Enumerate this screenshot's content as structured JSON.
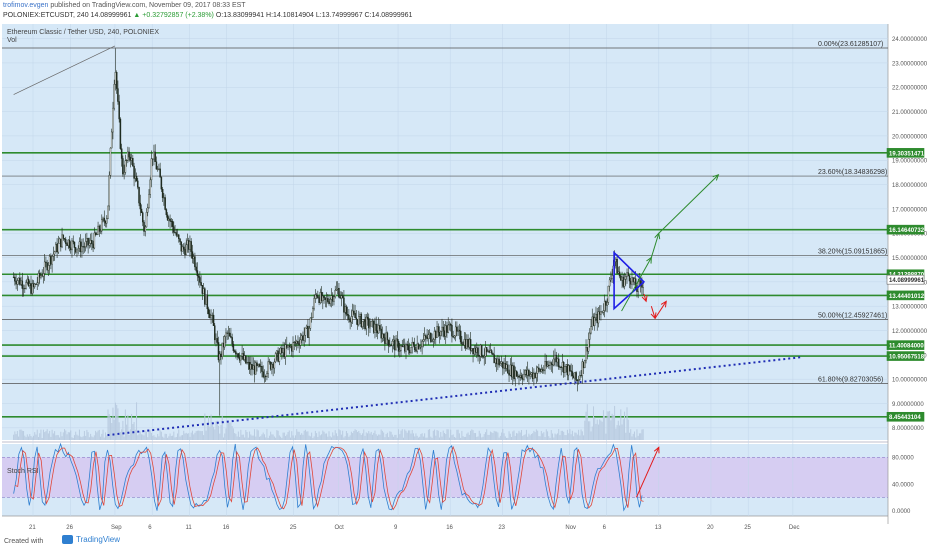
{
  "header": {
    "author": "trofimov.evgen",
    "published": "published on TradingView.com, November 09, 2017 08:33 EST",
    "symbol_line": "POLONIEX:ETCUSDT, 240",
    "last": "14.08999961",
    "change": "▲ +0.32792857 (+2.38%)",
    "ohlc": "O:13.83099941 H:14.10814904 L:13.74999967 C:14.08999961"
  },
  "chart": {
    "title": "Ethereum Classic / Tether USD, 240, POLONIEX",
    "volume_label": "Vol",
    "stoch_label": "Stoch RSI"
  },
  "footer": {
    "created_with": "Created with",
    "brand": "TradingView"
  },
  "colors": {
    "background": "#d6e8f7",
    "stoch_background": "#d6cdf2",
    "candle": "#1e2a1e",
    "green_level": "#2e8b2e",
    "fib_level": "#505050",
    "trendline": "#1f2db4",
    "triangle": "#1e1ee6",
    "up_arrow": "#2e8b2e",
    "down_arrow": "#e21b1b",
    "stoch_k": "#2f7fd0",
    "stoch_d": "#e0473a"
  },
  "chart_data": {
    "type": "candlestick",
    "title": "Ethereum Classic / Tether USD, 240, POLONIEX",
    "ylim": [
      7.5,
      24.6
    ],
    "y_ticks": [
      8.0,
      9.0,
      10.0,
      11.0,
      12.0,
      13.0,
      14.0,
      15.0,
      16.0,
      17.0,
      18.0,
      19.0,
      20.0,
      21.0,
      22.0,
      23.0,
      24.0
    ],
    "x_ticks": [
      {
        "label": "21",
        "day": 0
      },
      {
        "label": "26",
        "day": 5
      },
      {
        "label": "Sep",
        "day": 11
      },
      {
        "label": "6",
        "day": 16
      },
      {
        "label": "11",
        "day": 21
      },
      {
        "label": "16",
        "day": 26
      },
      {
        "label": "25",
        "day": 35
      },
      {
        "label": "Oct",
        "day": 41
      },
      {
        "label": "9",
        "day": 49
      },
      {
        "label": "16",
        "day": 56
      },
      {
        "label": "23",
        "day": 63
      },
      {
        "label": "Nov",
        "day": 72
      },
      {
        "label": "6",
        "day": 77
      },
      {
        "label": "13",
        "day": 84
      },
      {
        "label": "20",
        "day": 91
      },
      {
        "label": "25",
        "day": 96
      },
      {
        "label": "Dec",
        "day": 102
      }
    ],
    "price_path": [
      [
        -2.6,
        14.2
      ],
      [
        0,
        13.7
      ],
      [
        2,
        14.8
      ],
      [
        4,
        15.8
      ],
      [
        6,
        15.4
      ],
      [
        8,
        15.6
      ],
      [
        10,
        16.8
      ],
      [
        11,
        23.0
      ],
      [
        12,
        18.5
      ],
      [
        13,
        19.3
      ],
      [
        14,
        17.8
      ],
      [
        15,
        16.0
      ],
      [
        16,
        19.3
      ],
      [
        17,
        18.3
      ],
      [
        18,
        16.8
      ],
      [
        19,
        16.1
      ],
      [
        20,
        15.3
      ],
      [
        21,
        15.5
      ],
      [
        22,
        14.6
      ],
      [
        23,
        13.4
      ],
      [
        24,
        12.5
      ],
      [
        25,
        10.8
      ],
      [
        26,
        11.9
      ],
      [
        27,
        11.3
      ],
      [
        29,
        10.5
      ],
      [
        31,
        10.3
      ],
      [
        33,
        11.0
      ],
      [
        35,
        11.4
      ],
      [
        37,
        12.0
      ],
      [
        38,
        13.6
      ],
      [
        39,
        13.1
      ],
      [
        41,
        13.7
      ],
      [
        42,
        12.7
      ],
      [
        44,
        12.4
      ],
      [
        46,
        12.1
      ],
      [
        48,
        11.5
      ],
      [
        50,
        11.2
      ],
      [
        52,
        11.5
      ],
      [
        54,
        11.9
      ],
      [
        56,
        12.1
      ],
      [
        57,
        11.8
      ],
      [
        59,
        11.3
      ],
      [
        61,
        11.0
      ],
      [
        63,
        10.6
      ],
      [
        65,
        10.2
      ],
      [
        67,
        10.2
      ],
      [
        69,
        10.5
      ],
      [
        70,
        10.9
      ],
      [
        72,
        10.3
      ],
      [
        73,
        9.9
      ],
      [
        74,
        10.8
      ],
      [
        75,
        12.3
      ],
      [
        76,
        12.6
      ],
      [
        77,
        13.3
      ],
      [
        78,
        14.9
      ],
      [
        79,
        14.0
      ],
      [
        80,
        14.3
      ],
      [
        81,
        13.7
      ],
      [
        82,
        14.08
      ]
    ],
    "wicks": [
      {
        "day": 11,
        "high": 23.6
      },
      {
        "day": 25,
        "low": 8.5
      },
      {
        "day": 73,
        "low": 9.5
      },
      {
        "day": 78,
        "high": 15.3
      }
    ],
    "horizontal_levels": [
      {
        "label": "19.30351471",
        "value": 19.30351471,
        "kind": "green"
      },
      {
        "label": "16.14640732",
        "value": 16.14640732,
        "kind": "green"
      },
      {
        "label": "14.31298870",
        "value": 14.3129887,
        "kind": "green"
      },
      {
        "label": "13.44401012",
        "value": 13.44401012,
        "kind": "green"
      },
      {
        "label": "11.40084000",
        "value": 11.40084,
        "kind": "green"
      },
      {
        "label": "10.95067518",
        "value": 10.95067518,
        "kind": "green"
      },
      {
        "label": "8.45443104",
        "value": 8.45443104,
        "kind": "green"
      }
    ],
    "fib_levels": [
      {
        "label": "0.00%(23.61285107)",
        "value": 23.61285107
      },
      {
        "label": "23.60%(18.34836298)",
        "value": 18.34836298
      },
      {
        "label": "38.20%(15.09151865)",
        "value": 15.09151865
      },
      {
        "label": "50.00%(12.45927461)",
        "value": 12.45927461
      },
      {
        "label": "61.80%(9.82703056)",
        "value": 9.82703056
      }
    ],
    "last_price_label": "14.08999961",
    "last_price": 14.08999961,
    "trendline": {
      "from": [
        10,
        7.7
      ],
      "to": [
        103,
        10.9
      ]
    },
    "fan_line": {
      "from": [
        -2.6,
        21.7
      ],
      "to": [
        11,
        23.7
      ]
    },
    "triangle": [
      [
        78,
        15.2
      ],
      [
        78,
        12.9
      ],
      [
        82,
        14.0
      ]
    ],
    "projection_up": [
      [
        79,
        12.8
      ],
      [
        83,
        15.0
      ],
      [
        84,
        16.0
      ],
      [
        92,
        18.4
      ]
    ],
    "projection_down": [
      [
        82,
        13.5
      ],
      [
        83.5,
        12.5
      ],
      [
        85,
        13.2
      ]
    ],
    "stoch_rsi": {
      "ylim": [
        -8,
        100
      ],
      "y_ticks": [
        0,
        40,
        80
      ],
      "upper_band": 80,
      "lower_band": 20,
      "arrow": {
        "from": [
          81,
          20
        ],
        "to": [
          84,
          95
        ]
      }
    }
  }
}
